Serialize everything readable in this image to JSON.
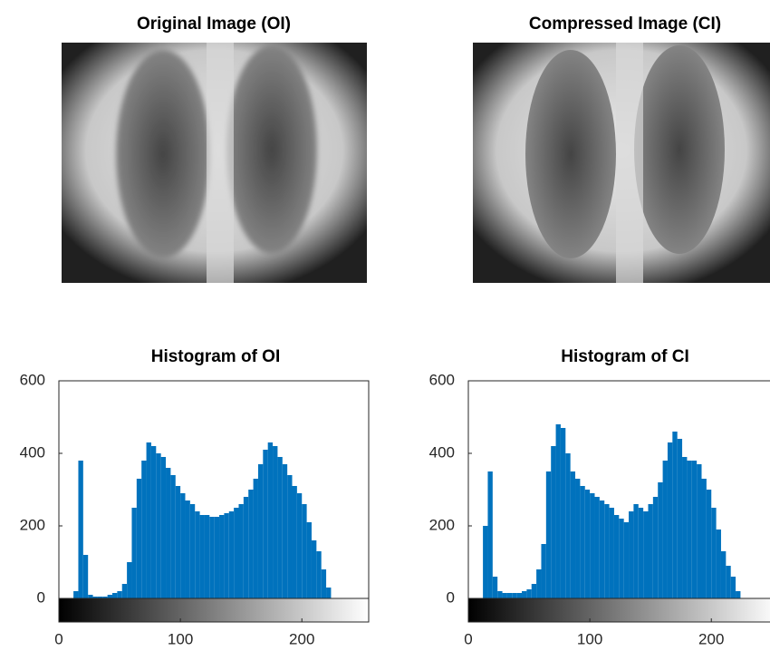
{
  "images": [
    {
      "title": "Original Image (OI)"
    },
    {
      "title": "Compressed Image (CI)"
    }
  ],
  "chart_data": [
    {
      "type": "bar",
      "title": "Histogram of OI",
      "color": "#0072bd",
      "bar_width": 4,
      "x": [
        0,
        4,
        8,
        12,
        16,
        20,
        24,
        28,
        32,
        36,
        40,
        44,
        48,
        52,
        56,
        60,
        64,
        68,
        72,
        76,
        80,
        84,
        88,
        92,
        96,
        100,
        104,
        108,
        112,
        116,
        120,
        124,
        128,
        132,
        136,
        140,
        144,
        148,
        152,
        156,
        160,
        164,
        168,
        172,
        176,
        180,
        184,
        188,
        192,
        196,
        200,
        204,
        208,
        212,
        216,
        220,
        224,
        228,
        232,
        236,
        240,
        244,
        248,
        252
      ],
      "values": [
        0,
        0,
        0,
        20,
        380,
        120,
        10,
        5,
        5,
        5,
        10,
        15,
        20,
        40,
        100,
        250,
        330,
        380,
        430,
        420,
        400,
        390,
        360,
        340,
        310,
        290,
        270,
        260,
        240,
        230,
        230,
        225,
        225,
        230,
        235,
        240,
        250,
        260,
        280,
        300,
        330,
        370,
        410,
        430,
        420,
        390,
        370,
        340,
        310,
        290,
        260,
        210,
        160,
        130,
        80,
        30,
        0,
        0,
        0,
        0,
        0,
        0,
        0,
        0
      ],
      "xlim": [
        0,
        255
      ],
      "ylim": [
        0,
        600
      ],
      "xticks": [
        0,
        100,
        200
      ],
      "yticks": [
        0,
        200,
        400,
        600
      ]
    },
    {
      "type": "bar",
      "title": "Histogram of CI",
      "color": "#0072bd",
      "bar_width": 4,
      "x": [
        0,
        4,
        8,
        12,
        16,
        20,
        24,
        28,
        32,
        36,
        40,
        44,
        48,
        52,
        56,
        60,
        64,
        68,
        72,
        76,
        80,
        84,
        88,
        92,
        96,
        100,
        104,
        108,
        112,
        116,
        120,
        124,
        128,
        132,
        136,
        140,
        144,
        148,
        152,
        156,
        160,
        164,
        168,
        172,
        176,
        180,
        184,
        188,
        192,
        196,
        200,
        204,
        208,
        212,
        216,
        220,
        224,
        228,
        232,
        236,
        240,
        244,
        248,
        252
      ],
      "values": [
        0,
        0,
        0,
        200,
        350,
        60,
        20,
        15,
        15,
        15,
        15,
        20,
        25,
        40,
        80,
        150,
        350,
        420,
        480,
        470,
        400,
        350,
        330,
        310,
        300,
        290,
        280,
        270,
        260,
        250,
        230,
        220,
        210,
        240,
        260,
        250,
        240,
        260,
        280,
        320,
        380,
        430,
        460,
        440,
        390,
        380,
        380,
        370,
        330,
        300,
        250,
        190,
        130,
        90,
        60,
        20,
        0,
        0,
        0,
        0,
        0,
        0,
        0,
        0
      ],
      "xlim": [
        0,
        255
      ],
      "ylim": [
        0,
        600
      ],
      "xticks": [
        0,
        100,
        200
      ],
      "yticks": [
        0,
        200,
        400,
        600
      ]
    }
  ]
}
